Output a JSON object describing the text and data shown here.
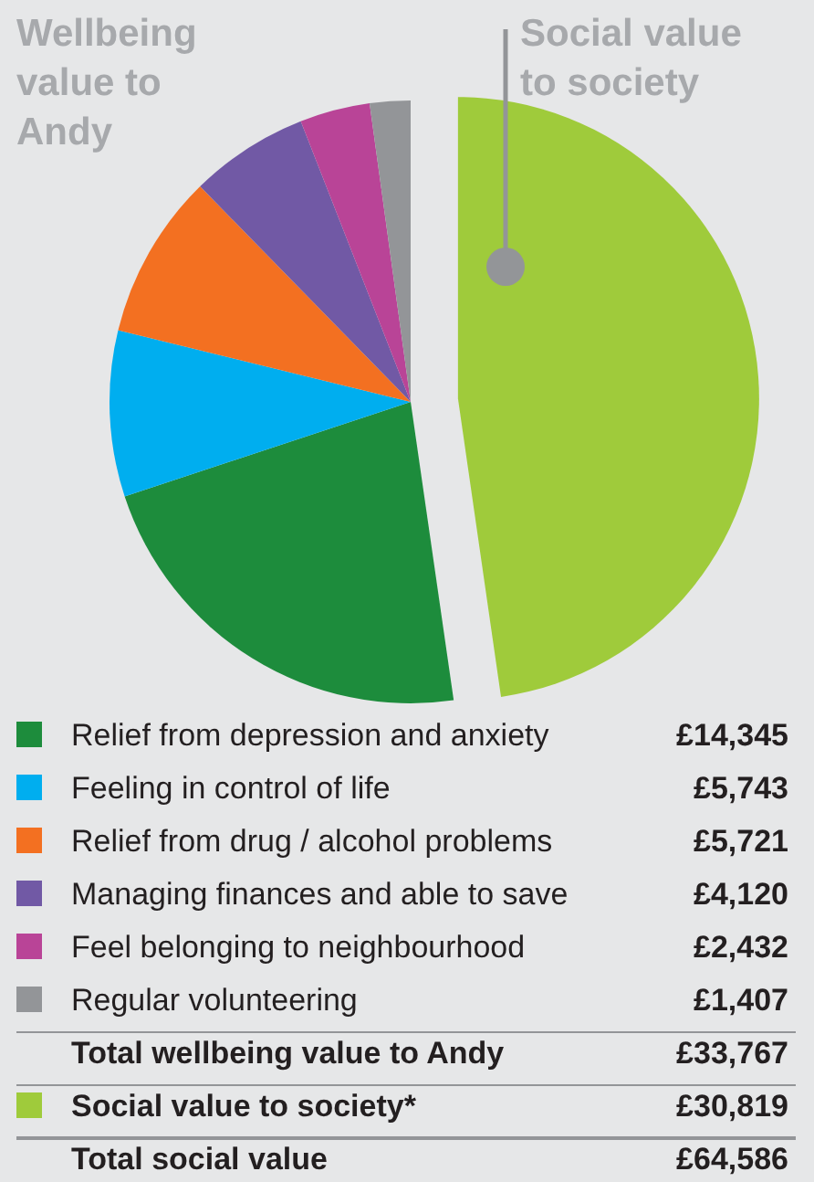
{
  "chart_data": {
    "type": "pie",
    "categories": [
      "Relief from depression and anxiety",
      "Feeling in control of life",
      "Relief from drug / alcohol problems",
      "Managing finances and able to save",
      "Feel belonging to neighbourhood",
      "Regular volunteering",
      "Social value to society*"
    ],
    "values": [
      14345,
      5743,
      5721,
      4120,
      2432,
      1407,
      30819
    ],
    "value_labels": [
      "£14,345",
      "£5,743",
      "£5,721",
      "£4,120",
      "£2,432",
      "£1,407",
      "£30,819"
    ],
    "colors": [
      "#1d8c3c",
      "#00aeef",
      "#f37021",
      "#7159a5",
      "#b94497",
      "#939598",
      "#9fcb3b"
    ],
    "annotations": [
      "Wellbeing value to Andy",
      "Social value to society",
      "Total wellbeing value to Andy",
      "£33,767",
      "Total social value",
      "£64,586"
    ],
    "legend": "bottom"
  }
}
